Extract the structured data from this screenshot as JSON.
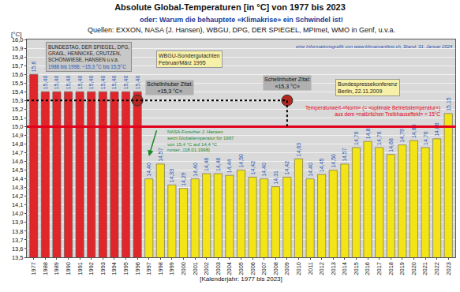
{
  "chart_data": {
    "type": "bar",
    "title": "Absolute Global-Temperaturen [in °C] von 1977 bis 2023",
    "subtitle": "oder: Warum die behauptete «Klimakrise» ein Schwindel ist!",
    "sources": "Quellen: EXXON, NASA (J. Hansen), WBGU, DPG, DER SPIEGEL, MPImet, WMO in Genf, u.v.a.",
    "credit": "eine Informationsgrafik von www.klimamanifest.ch, Stand: 31. Januar 2024",
    "x_label": "[Kalenderjahr: 1977 bis 2023]",
    "y_label": "[°C]",
    "categories": [
      "1977",
      "1988",
      "1989",
      "1990",
      "1991",
      "1992",
      "1993",
      "1994",
      "1995",
      "1996",
      "1997",
      "1998",
      "1999",
      "2000",
      "2001",
      "2002",
      "2003",
      "2004",
      "2005",
      "2006",
      "2007",
      "2008",
      "2009",
      "2010",
      "2011",
      "2012",
      "2013",
      "2014",
      "2015",
      "2016",
      "2017",
      "2018",
      "2019",
      "2020",
      "2021",
      "2022",
      "2023"
    ],
    "values": [
      15.6,
      15.4,
      15.4,
      15.4,
      15.4,
      15.4,
      15.4,
      15.4,
      15.4,
      15.4,
      14.4,
      14.57,
      14.33,
      14.29,
      14.4,
      14.46,
      14.46,
      14.44,
      14.5,
      14.42,
      14.4,
      14.31,
      14.42,
      14.63,
      14.4,
      14.45,
      14.5,
      14.57,
      14.76,
      14.83,
      14.76,
      14.68,
      14.79,
      14.84,
      14.76,
      14.86,
      15.15
    ],
    "value_labels": [
      "15,6",
      "15,40",
      "15,40",
      "15,40",
      "15,40",
      "15,40",
      "15,40",
      "15,40",
      "15,40",
      "15,40",
      "14,40",
      "14,57",
      "14,33",
      "14,29",
      "14,40",
      "14,46",
      "14,46",
      "14,44",
      "14,50",
      "14,42",
      "14,40",
      "14,31",
      "14,42",
      "14,63",
      "14,40",
      "14,45",
      "14,50",
      "14,57",
      "14,76",
      "14,83",
      "14,76",
      "14,68",
      "14,79",
      "14,84",
      "14,76",
      "14,86",
      "15,15"
    ],
    "colors": [
      "#e0262b",
      "#e0262b",
      "#e0262b",
      "#e0262b",
      "#e0262b",
      "#e0262b",
      "#e0262b",
      "#e0262b",
      "#e0262b",
      "#e0262b",
      "#f2e417",
      "#f2e417",
      "#f2e417",
      "#f2e417",
      "#f2e417",
      "#f2e417",
      "#f2e417",
      "#f2e417",
      "#f2e417",
      "#f2e417",
      "#f2e417",
      "#f2e417",
      "#f2e417",
      "#f2e417",
      "#f2e417",
      "#f2e417",
      "#f2e417",
      "#f2e417",
      "#f2e417",
      "#f2e417",
      "#f2e417",
      "#f2e417",
      "#f2e417",
      "#f2e417",
      "#f2e417",
      "#f2e417",
      "#f2e417"
    ],
    "data_labels": true,
    "ylim": [
      13.5,
      16.0
    ],
    "yticks": [
      {
        "value": 13.5,
        "label": "13,5"
      },
      {
        "value": 13.6,
        "label": "13,6"
      },
      {
        "value": 13.7,
        "label": "13,7"
      },
      {
        "value": 13.8,
        "label": "13,8"
      },
      {
        "value": 13.9,
        "label": "13,9"
      },
      {
        "value": 14.0,
        "label": "14,0"
      },
      {
        "value": 14.1,
        "label": "14,1"
      },
      {
        "value": 14.2,
        "label": "14,2"
      },
      {
        "value": 14.3,
        "label": "14,3"
      },
      {
        "value": 14.4,
        "label": "14,4"
      },
      {
        "value": 14.5,
        "label": "14,5"
      },
      {
        "value": 14.6,
        "label": "14,6"
      },
      {
        "value": 14.7,
        "label": "14,7"
      },
      {
        "value": 14.8,
        "label": "14,8"
      },
      {
        "value": 14.9,
        "label": "14,9"
      },
      {
        "value": 15.0,
        "label": "15,0"
      },
      {
        "value": 15.1,
        "label": "15,1"
      },
      {
        "value": 15.2,
        "label": "15,2"
      },
      {
        "value": 15.3,
        "label": "15,3"
      },
      {
        "value": 15.4,
        "label": "15,4"
      },
      {
        "value": 15.5,
        "label": "15,5"
      },
      {
        "value": 15.6,
        "label": "15,6"
      },
      {
        "value": 15.7,
        "label": "15,7"
      },
      {
        "value": 15.8,
        "label": "15,8"
      },
      {
        "value": 15.9,
        "label": "15,9"
      },
      {
        "value": 16.0,
        "label": "16,0"
      }
    ],
    "grid": true,
    "lines": [
      {
        "value": 15.0,
        "color": "#e3001b",
        "line_style": "solid"
      },
      {
        "value": 15.3,
        "color": "#000000",
        "line_style": "dotted",
        "to": "2009",
        "markers": [
          "1996",
          "2009"
        ]
      }
    ],
    "annotations": {
      "box": [
        "BUNDESTAG, DER SPIEGEL, DPG,",
        "GRAßL, HENNICKE, CRUTZEN,",
        "SCHÖNWIESE, HANSEN u.v.a.",
        "1988 bis 1996: ~15,3 °C bis 15,5°C"
      ],
      "wbgu": [
        "WBGU-Sondergutachten",
        "Februar/März 1995"
      ],
      "quote": [
        "Schellnhuber Zitat:",
        "«15,3 °C»"
      ],
      "press": [
        "Bundespressekonferenz",
        "Berlin, 22.11.2009"
      ],
      "nasa": [
        "NASA-Forscher J. Hansen",
        "setzt Globaltemperatur für 1997",
        "von 15,4 °C auf 14,4 °C",
        "runter...[18.01.1998]"
      ],
      "norm": [
        "Temperaturwert-«Norm» (= «optimale Betriebstemperatur»)",
        "aus dem «natürlichen Treibhauseffekt» = 15°C"
      ]
    }
  }
}
